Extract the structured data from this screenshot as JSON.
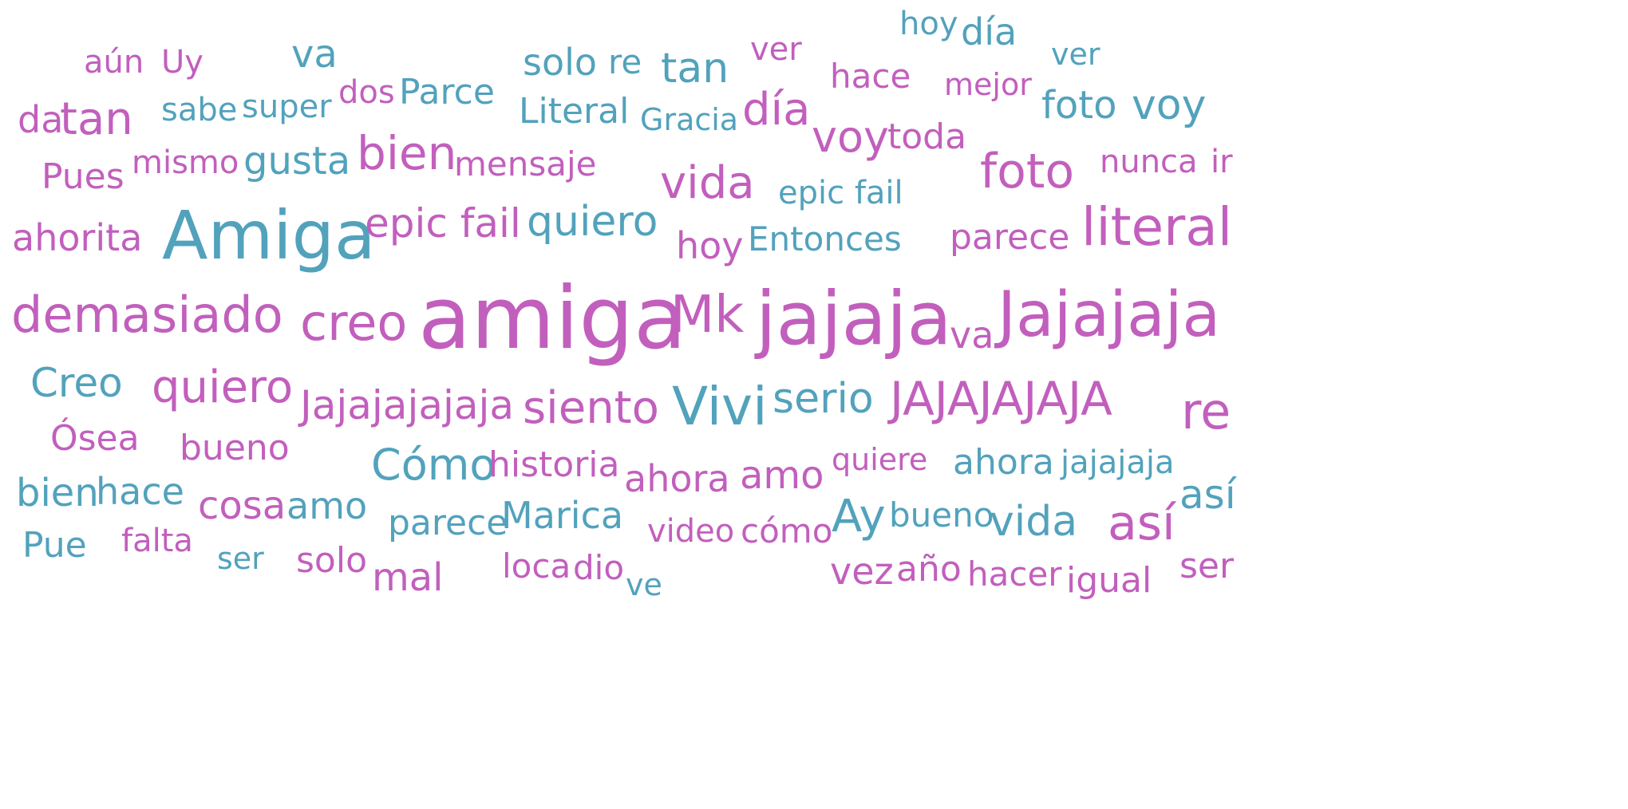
{
  "colors": {
    "pink": "#c25fbd",
    "teal": "#52a2bc"
  },
  "words": [
    {
      "text": "aún",
      "c": "pink"
    },
    {
      "text": "Uy",
      "c": "pink"
    },
    {
      "text": "va",
      "c": "teal"
    },
    {
      "text": "solo",
      "c": "teal"
    },
    {
      "text": "re",
      "c": "teal"
    },
    {
      "text": "tan",
      "c": "teal"
    },
    {
      "text": "ver",
      "c": "pink"
    },
    {
      "text": "hoy",
      "c": "teal"
    },
    {
      "text": "día",
      "c": "teal"
    },
    {
      "text": "ver",
      "c": "teal"
    },
    {
      "text": "da",
      "c": "pink"
    },
    {
      "text": "tan",
      "c": "pink"
    },
    {
      "text": "sabe",
      "c": "teal"
    },
    {
      "text": "super",
      "c": "teal"
    },
    {
      "text": "dos",
      "c": "pink"
    },
    {
      "text": "Parce",
      "c": "teal"
    },
    {
      "text": "Literal",
      "c": "teal"
    },
    {
      "text": "Gracia",
      "c": "teal"
    },
    {
      "text": "día",
      "c": "pink"
    },
    {
      "text": "hace",
      "c": "pink"
    },
    {
      "text": "mejor",
      "c": "pink"
    },
    {
      "text": "foto",
      "c": "teal"
    },
    {
      "text": "voy",
      "c": "teal"
    },
    {
      "text": "voy",
      "c": "pink"
    },
    {
      "text": "toda",
      "c": "pink"
    },
    {
      "text": "Pues",
      "c": "pink"
    },
    {
      "text": "mismo",
      "c": "pink"
    },
    {
      "text": "gusta",
      "c": "teal"
    },
    {
      "text": "bien",
      "c": "pink"
    },
    {
      "text": "mensaje",
      "c": "pink"
    },
    {
      "text": "vida",
      "c": "pink"
    },
    {
      "text": "foto",
      "c": "pink"
    },
    {
      "text": "nunca",
      "c": "pink"
    },
    {
      "text": "ir",
      "c": "pink"
    },
    {
      "text": "epic fail",
      "c": "teal"
    },
    {
      "text": "ahorita",
      "c": "pink"
    },
    {
      "text": "Amiga",
      "c": "teal"
    },
    {
      "text": "epic fail",
      "c": "pink"
    },
    {
      "text": "quiero",
      "c": "teal"
    },
    {
      "text": "hoy",
      "c": "pink"
    },
    {
      "text": "Entonces",
      "c": "teal"
    },
    {
      "text": "parece",
      "c": "pink"
    },
    {
      "text": "literal",
      "c": "pink"
    },
    {
      "text": "demasiado",
      "c": "pink"
    },
    {
      "text": "creo",
      "c": "pink"
    },
    {
      "text": "amiga",
      "c": "pink"
    },
    {
      "text": "Mk",
      "c": "pink"
    },
    {
      "text": "jajaja",
      "c": "pink"
    },
    {
      "text": "va",
      "c": "pink"
    },
    {
      "text": "Jajajaja",
      "c": "pink"
    },
    {
      "text": "Creo",
      "c": "teal"
    },
    {
      "text": "quiero",
      "c": "pink"
    },
    {
      "text": "Jajajajajaja",
      "c": "pink"
    },
    {
      "text": "siento",
      "c": "pink"
    },
    {
      "text": "Vivi",
      "c": "teal"
    },
    {
      "text": "serio",
      "c": "teal"
    },
    {
      "text": "JAJAJAJAJA",
      "c": "pink"
    },
    {
      "text": "re",
      "c": "pink"
    },
    {
      "text": "Ósea",
      "c": "pink"
    },
    {
      "text": "bueno",
      "c": "pink"
    },
    {
      "text": "Cómo",
      "c": "teal"
    },
    {
      "text": "historia",
      "c": "pink"
    },
    {
      "text": "ahora",
      "c": "pink"
    },
    {
      "text": "amo",
      "c": "pink"
    },
    {
      "text": "quiere",
      "c": "pink"
    },
    {
      "text": "ahora",
      "c": "teal"
    },
    {
      "text": "jajajaja",
      "c": "teal"
    },
    {
      "text": "bien",
      "c": "teal"
    },
    {
      "text": "hace",
      "c": "teal"
    },
    {
      "text": "cosa",
      "c": "pink"
    },
    {
      "text": "amo",
      "c": "teal"
    },
    {
      "text": "parece",
      "c": "teal"
    },
    {
      "text": "Marica",
      "c": "teal"
    },
    {
      "text": "video",
      "c": "pink"
    },
    {
      "text": "cómo",
      "c": "pink"
    },
    {
      "text": "Ay",
      "c": "teal"
    },
    {
      "text": "bueno",
      "c": "teal"
    },
    {
      "text": "vida",
      "c": "teal"
    },
    {
      "text": "así",
      "c": "pink"
    },
    {
      "text": "así",
      "c": "teal"
    },
    {
      "text": "Pue",
      "c": "teal"
    },
    {
      "text": "falta",
      "c": "pink"
    },
    {
      "text": "ser",
      "c": "teal"
    },
    {
      "text": "solo",
      "c": "pink"
    },
    {
      "text": "mal",
      "c": "pink"
    },
    {
      "text": "loca",
      "c": "pink"
    },
    {
      "text": "dio",
      "c": "pink"
    },
    {
      "text": "ve",
      "c": "teal"
    },
    {
      "text": "vez",
      "c": "pink"
    },
    {
      "text": "año",
      "c": "pink"
    },
    {
      "text": "hacer",
      "c": "pink"
    },
    {
      "text": "igual",
      "c": "pink"
    },
    {
      "text": "ser",
      "c": "pink"
    }
  ]
}
